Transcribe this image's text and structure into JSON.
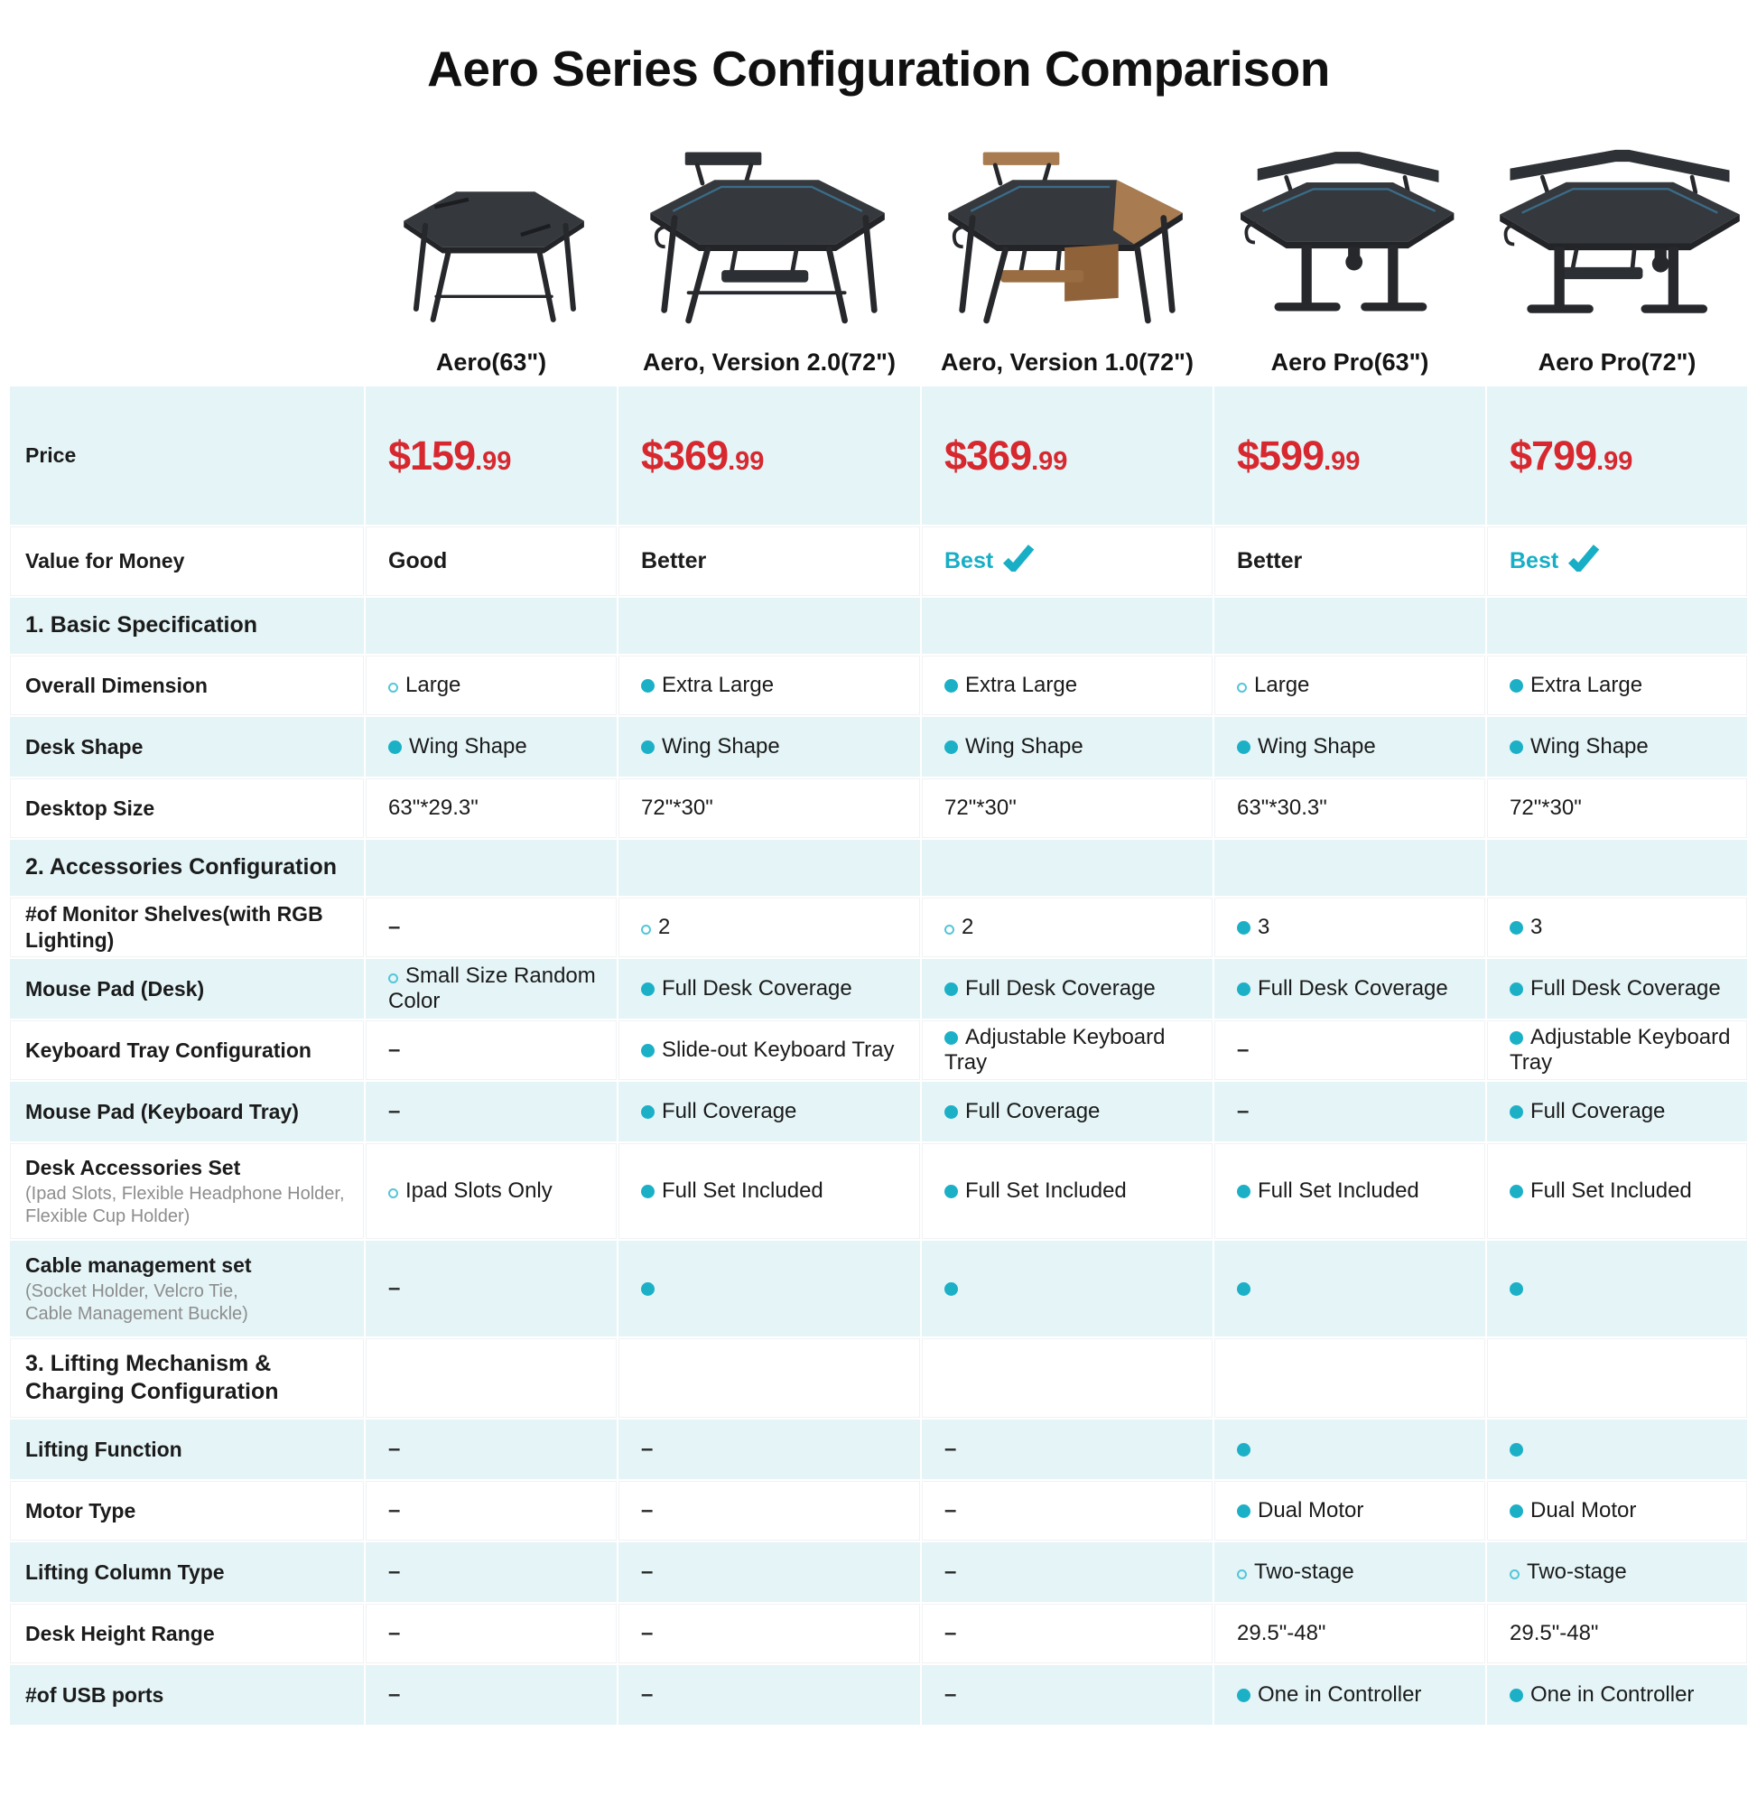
{
  "title": "Aero Series Configuration Comparison",
  "colors": {
    "price_red": "#d7282f",
    "accent_teal": "#17aec6",
    "bullet_teal": "#1cb0c7",
    "row_highlight_blue": "#e4f4f7",
    "subtext_gray": "#8d8d8d"
  },
  "icons": {
    "check": "check-icon",
    "bullet_filled": "filled-circle-icon",
    "bullet_hollow": "hollow-circle-icon"
  },
  "products": [
    {
      "name": "Aero(63\")",
      "image": "aero-63-desk-render"
    },
    {
      "name": "Aero, Version 2.0(72\")",
      "image": "aero-v2-72-desk-render"
    },
    {
      "name": "Aero, Version 1.0(72\")",
      "image": "aero-v1-72-desk-render"
    },
    {
      "name": "Aero Pro(63\")",
      "image": "aero-pro-63-desk-render"
    },
    {
      "name": "Aero Pro(72\")",
      "image": "aero-pro-72-desk-render"
    }
  ],
  "chart_data": {
    "type": "table",
    "title": "Aero Series Configuration Comparison",
    "columns": [
      "Aero(63\")",
      "Aero, Version 2.0(72\")",
      "Aero, Version 1.0(72\")",
      "Aero Pro(63\")",
      "Aero Pro(72\")"
    ],
    "rows": [
      {
        "id": "price",
        "kind": "price",
        "label": "Price",
        "cells": [
          {
            "price_main": "$159",
            "price_cents": ".99"
          },
          {
            "price_main": "$369",
            "price_cents": ".99"
          },
          {
            "price_main": "$369",
            "price_cents": ".99"
          },
          {
            "price_main": "$599",
            "price_cents": ".99"
          },
          {
            "price_main": "$799",
            "price_cents": ".99"
          }
        ]
      },
      {
        "id": "value_for_money",
        "kind": "rating",
        "label": "Value for Money",
        "cells": [
          {
            "text": "Good"
          },
          {
            "text": "Better"
          },
          {
            "text": "Best",
            "check": true
          },
          {
            "text": "Better"
          },
          {
            "text": "Best",
            "check": true
          }
        ]
      },
      {
        "id": "basic_specification",
        "kind": "section",
        "label": "1. Basic Specification",
        "cells": []
      },
      {
        "id": "overall_dimension",
        "kind": "data",
        "label": "Overall Dimension",
        "cells": [
          {
            "bullet": "hollow",
            "text": "Large"
          },
          {
            "bullet": "filled",
            "text": "Extra Large"
          },
          {
            "bullet": "filled",
            "text": "Extra Large"
          },
          {
            "bullet": "hollow",
            "text": "Large"
          },
          {
            "bullet": "filled",
            "text": "Extra Large"
          }
        ]
      },
      {
        "id": "desk_shape",
        "kind": "data",
        "label": "Desk Shape",
        "cells": [
          {
            "bullet": "filled",
            "text": "Wing Shape"
          },
          {
            "bullet": "filled",
            "text": "Wing Shape"
          },
          {
            "bullet": "filled",
            "text": "Wing Shape"
          },
          {
            "bullet": "filled",
            "text": "Wing Shape"
          },
          {
            "bullet": "filled",
            "text": "Wing Shape"
          }
        ]
      },
      {
        "id": "desktop_size",
        "kind": "data",
        "label": "Desktop Size",
        "cells": [
          {
            "text": "63\"*29.3\""
          },
          {
            "text": "72\"*30\""
          },
          {
            "text": "72\"*30\""
          },
          {
            "text": "63\"*30.3\""
          },
          {
            "text": "72\"*30\""
          }
        ]
      },
      {
        "id": "accessories_configuration",
        "kind": "section",
        "label": "2. Accessories Configuration",
        "cells": []
      },
      {
        "id": "monitor_shelves",
        "kind": "data",
        "label": "#of Monitor Shelves(with RGB Lighting)",
        "cells": [
          {
            "text": "–"
          },
          {
            "bullet": "hollow",
            "text": "2"
          },
          {
            "bullet": "hollow",
            "text": "2"
          },
          {
            "bullet": "filled",
            "text": "3"
          },
          {
            "bullet": "filled",
            "text": "3"
          }
        ]
      },
      {
        "id": "mouse_pad_desk",
        "kind": "data",
        "label": "Mouse Pad (Desk)",
        "cells": [
          {
            "bullet": "hollow",
            "text": "Small Size Random Color"
          },
          {
            "bullet": "filled",
            "text": "Full Desk Coverage"
          },
          {
            "bullet": "filled",
            "text": "Full Desk Coverage"
          },
          {
            "bullet": "filled",
            "text": "Full Desk Coverage"
          },
          {
            "bullet": "filled",
            "text": "Full Desk Coverage"
          }
        ]
      },
      {
        "id": "keyboard_tray_configuration",
        "kind": "data",
        "label": "Keyboard Tray Configuration",
        "cells": [
          {
            "text": "–"
          },
          {
            "bullet": "filled",
            "text": "Slide-out Keyboard Tray"
          },
          {
            "bullet": "filled",
            "text": "Adjustable Keyboard Tray"
          },
          {
            "text": "–"
          },
          {
            "bullet": "filled",
            "text": "Adjustable Keyboard Tray"
          }
        ]
      },
      {
        "id": "mouse_pad_keyboard_tray",
        "kind": "data",
        "label": "Mouse Pad (Keyboard Tray)",
        "cells": [
          {
            "text": "–"
          },
          {
            "bullet": "filled",
            "text": "Full Coverage"
          },
          {
            "bullet": "filled",
            "text": "Full Coverage"
          },
          {
            "text": "–"
          },
          {
            "bullet": "filled",
            "text": "Full Coverage"
          }
        ]
      },
      {
        "id": "desk_accessories_set",
        "kind": "data_tall",
        "label": "Desk Accessories Set",
        "sublabel_lines": [
          "(Ipad Slots, Flexible Headphone Holder,",
          "Flexible Cup Holder)"
        ],
        "cells": [
          {
            "bullet": "hollow",
            "text": "Ipad Slots Only"
          },
          {
            "bullet": "filled",
            "text": "Full Set Included"
          },
          {
            "bullet": "filled",
            "text": "Full Set Included"
          },
          {
            "bullet": "filled",
            "text": "Full Set Included"
          },
          {
            "bullet": "filled",
            "text": "Full Set Included"
          }
        ]
      },
      {
        "id": "cable_management_set",
        "kind": "data_tall",
        "label": "Cable management set",
        "sublabel_lines": [
          "(Socket Holder, Velcro Tie,",
          "Cable Management Buckle)"
        ],
        "cells": [
          {
            "text": "–"
          },
          {
            "bullet": "filled",
            "text": ""
          },
          {
            "bullet": "filled",
            "text": ""
          },
          {
            "bullet": "filled",
            "text": ""
          },
          {
            "bullet": "filled",
            "text": ""
          }
        ]
      },
      {
        "id": "lifting_charging_configuration",
        "kind": "section2",
        "label_lines": [
          "3. Lifting Mechanism &",
          "Charging Configuration"
        ],
        "label": "3. Lifting Mechanism & Charging Configuration",
        "cells": []
      },
      {
        "id": "lifting_function",
        "kind": "data",
        "label": "Lifting Function",
        "cells": [
          {
            "text": "–"
          },
          {
            "text": "–"
          },
          {
            "text": "–"
          },
          {
            "bullet": "filled",
            "text": ""
          },
          {
            "bullet": "filled",
            "text": ""
          }
        ]
      },
      {
        "id": "motor_type",
        "kind": "data",
        "label": "Motor Type",
        "cells": [
          {
            "text": "–"
          },
          {
            "text": "–"
          },
          {
            "text": "–"
          },
          {
            "bullet": "filled",
            "text": "Dual Motor"
          },
          {
            "bullet": "filled",
            "text": "Dual Motor"
          }
        ]
      },
      {
        "id": "lifting_column_type",
        "kind": "data",
        "label": "Lifting Column Type",
        "cells": [
          {
            "text": "–"
          },
          {
            "text": "–"
          },
          {
            "text": "–"
          },
          {
            "bullet": "hollow",
            "text": "Two-stage"
          },
          {
            "bullet": "hollow",
            "text": "Two-stage"
          }
        ]
      },
      {
        "id": "desk_height_range",
        "kind": "data",
        "label": "Desk Height Range",
        "cells": [
          {
            "text": "–"
          },
          {
            "text": "–"
          },
          {
            "text": "–"
          },
          {
            "text": "29.5\"-48\""
          },
          {
            "text": "29.5\"-48\""
          }
        ]
      },
      {
        "id": "usb_ports",
        "kind": "data",
        "label": "#of USB ports",
        "cells": [
          {
            "text": "–"
          },
          {
            "text": "–"
          },
          {
            "text": "–"
          },
          {
            "bullet": "filled",
            "text": "One in Controller"
          },
          {
            "bullet": "filled",
            "text": "One in Controller"
          }
        ]
      }
    ]
  }
}
